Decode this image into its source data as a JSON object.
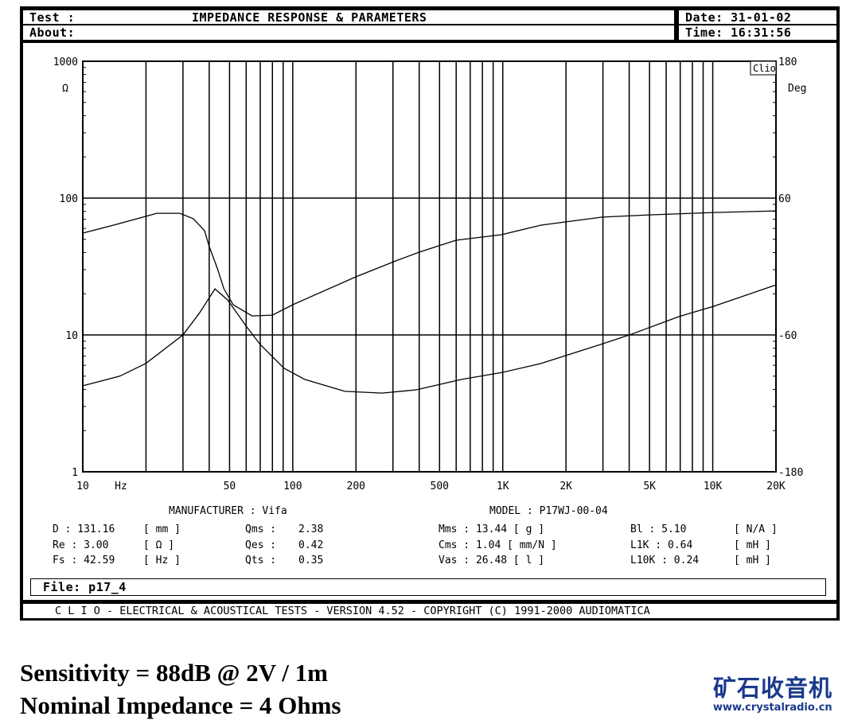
{
  "header": {
    "test_label": "Test :",
    "title": "IMPEDANCE RESPONSE & PARAMETERS",
    "about_label": "About:",
    "date": "Date: 31-01-02",
    "time": "Time: 16:31:56"
  },
  "plot": {
    "brand_tag": "Clio",
    "left_unit": "Ω",
    "right_unit": "Deg",
    "x_unit": "Hz"
  },
  "chart_data": {
    "type": "line",
    "x_scale": "log",
    "xlim": [
      10,
      20000
    ],
    "ylim_left": [
      1,
      1000
    ],
    "y_left_scale": "log",
    "ylim_right": [
      -180,
      180
    ],
    "grid": true,
    "x_tick_labels": [
      "10",
      "50",
      "100",
      "200",
      "500",
      "1K",
      "2K",
      "5K",
      "10K",
      "20K"
    ],
    "y_left_tick_labels": [
      "1000",
      "100",
      "10",
      "1"
    ],
    "y_right_tick_labels": [
      "180",
      "60",
      "-60",
      "-180"
    ],
    "series": [
      {
        "axis": "left",
        "unit": "Ω",
        "x": [
          10,
          15,
          20,
          30,
          36,
          42.6,
          49,
          60,
          70,
          91,
          114,
          177,
          266,
          387,
          637,
          1000,
          1520,
          2980,
          4080,
          6890,
          10100,
          20000
        ],
        "y": [
          4.25,
          5.0,
          6.2,
          10,
          14.5,
          21.7,
          18,
          11.6,
          8.5,
          5.7,
          4.73,
          3.87,
          3.76,
          3.97,
          4.73,
          5.33,
          6.18,
          8.6,
          10.1,
          13.6,
          16.2,
          23.2
        ]
      },
      {
        "axis": "right",
        "unit": "Deg",
        "x": [
          10,
          14,
          20,
          22.5,
          29,
          33.6,
          38,
          40,
          43.7,
          47,
          52,
          64,
          80,
          100,
          200,
          316,
          401,
          598,
          985,
          1520,
          2980,
          4980,
          10100,
          20000
        ],
        "y": [
          29.3,
          36.3,
          44,
          46.7,
          46.7,
          41.9,
          31.4,
          17.5,
          -1.4,
          -19.5,
          -33.5,
          -43.3,
          -42.6,
          -33.5,
          -9,
          5.6,
          12.6,
          23,
          27.9,
          36.3,
          43.3,
          45.3,
          47.4,
          48.8
        ]
      }
    ]
  },
  "params": {
    "manufacturer": "MANUFACTURER : Vifa",
    "model": "MODEL : P17WJ-00-04",
    "rows": [
      [
        "D : 131.16",
        "[ mm ]",
        "Qms :",
        "2.38",
        "Mms : 13.44 [ g ]",
        "Bl : 5.10",
        "[ N/A ]"
      ],
      [
        "Re : 3.00",
        "[ Ω ]",
        "Qes :",
        "0.42",
        "Cms : 1.04  [ mm/N ]",
        "L1K : 0.64",
        "[ mH ]"
      ],
      [
        "Fs : 42.59",
        "[ Hz ]",
        "Qts :",
        "0.35",
        "Vas : 26.48 [ l ]",
        "L10K : 0.24",
        "[ mH ]"
      ]
    ]
  },
  "file": "File: p17_4",
  "footer": "C L I O  -  ELECTRICAL & ACOUSTICAL TESTS  -  VERSION 4.52  -  COPYRIGHT (C) 1991-2000 AUDIOMATICA",
  "notes": {
    "sensitivity": "Sensitivity = 88dB @ 2V / 1m",
    "impedance": "Nominal Impedance = 4 Ohms"
  },
  "watermark": {
    "name": "矿石收音机",
    "url": "www.crystalradio.cn",
    "color": "#1a3a8c"
  }
}
